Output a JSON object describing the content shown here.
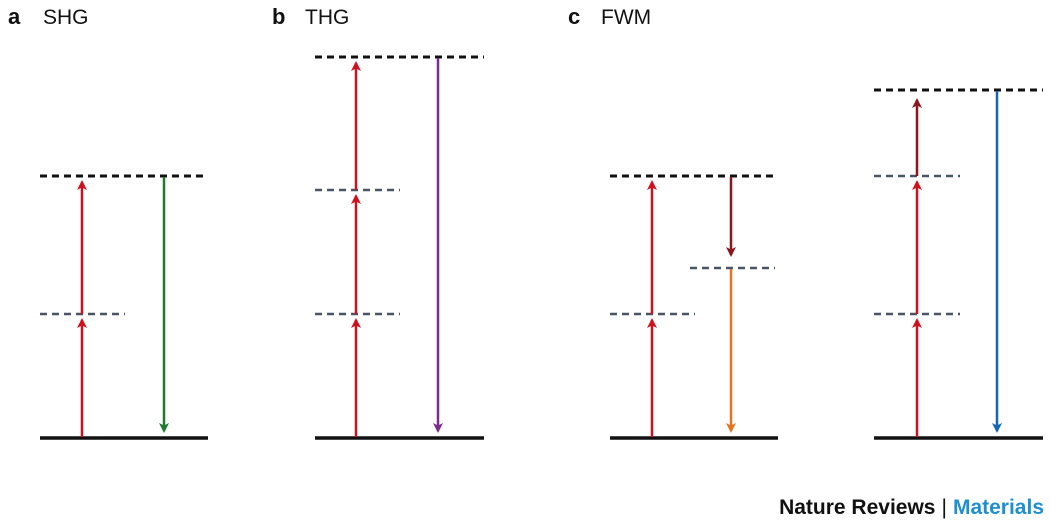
{
  "panels": [
    {
      "letter": "a",
      "title": "SHG",
      "levels": [
        "ground",
        "virtual",
        "virtual-upper"
      ],
      "transitions": [
        {
          "kind": "pump",
          "direction": "up",
          "color": "#d0101e"
        },
        {
          "kind": "pump",
          "direction": "up",
          "color": "#d0101e"
        },
        {
          "kind": "signal",
          "direction": "down",
          "color": "#1f7a2e"
        }
      ]
    },
    {
      "letter": "b",
      "title": "THG",
      "levels": [
        "ground",
        "virtual",
        "virtual",
        "virtual-upper"
      ],
      "transitions": [
        {
          "kind": "pump",
          "direction": "up",
          "color": "#d0101e"
        },
        {
          "kind": "pump",
          "direction": "up",
          "color": "#d0101e"
        },
        {
          "kind": "pump",
          "direction": "up",
          "color": "#d0101e"
        },
        {
          "kind": "signal",
          "direction": "down",
          "color": "#7a2f8e"
        }
      ]
    },
    {
      "letter": "c",
      "title": "FWM",
      "diagrams": [
        {
          "transitions": [
            {
              "kind": "pump",
              "direction": "up",
              "color": "#d0101e"
            },
            {
              "kind": "pump",
              "direction": "up",
              "color": "#d0101e"
            },
            {
              "kind": "idler",
              "direction": "down",
              "color": "#8b1620"
            },
            {
              "kind": "signal",
              "direction": "down",
              "color": "#e8731e"
            }
          ]
        },
        {
          "transitions": [
            {
              "kind": "pump",
              "direction": "up",
              "color": "#d0101e"
            },
            {
              "kind": "pump",
              "direction": "up",
              "color": "#d0101e"
            },
            {
              "kind": "idler",
              "direction": "up",
              "color": "#8b1620"
            },
            {
              "kind": "signal",
              "direction": "down",
              "color": "#1565b0"
            }
          ]
        }
      ]
    }
  ],
  "colors": {
    "pump": "#d0101e",
    "shg_signal": "#1f7a2e",
    "thg_signal": "#7a2f8e",
    "fwm_idler": "#8b1620",
    "fwm_signal_1": "#e8731e",
    "fwm_signal_2": "#1565b0",
    "ground_level": "#111111",
    "virtual_level_upper": "#111111",
    "virtual_level_mid": "#4a5563",
    "credit_accent": "#1f8fd0"
  },
  "credit": {
    "journal": "Nature Reviews",
    "separator": "|",
    "section": "Materials"
  }
}
